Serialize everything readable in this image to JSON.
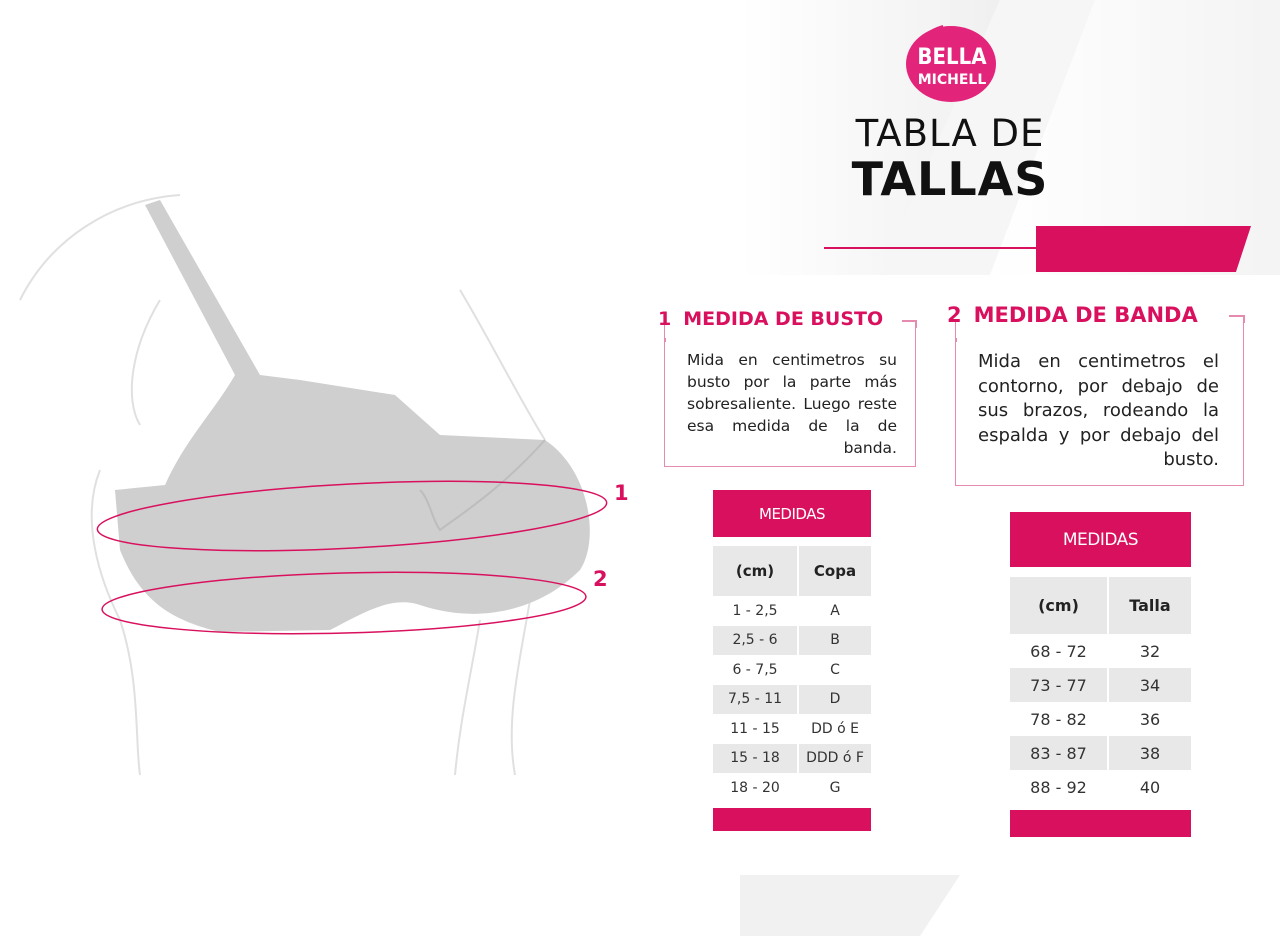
{
  "brand": {
    "logo_text": "BELLA MICHELL",
    "accent_color": "#d9105e"
  },
  "title": {
    "line1": "TABLA DE",
    "line2": "TALLAS"
  },
  "illustration": {
    "marker_1": "1",
    "marker_2": "2"
  },
  "bust": {
    "number": "1",
    "heading": "MEDIDA DE BUSTO",
    "text": "Mida en centimetros su busto por la parte más sobresaliente. Luego reste esa medida de la de banda.",
    "table": {
      "header": "MEDIDAS",
      "columns": [
        "(cm)",
        "Copa"
      ],
      "rows": [
        [
          "1 - 2,5",
          "A"
        ],
        [
          "2,5 - 6",
          "B"
        ],
        [
          "6 - 7,5",
          "C"
        ],
        [
          "7,5 - 11",
          "D"
        ],
        [
          "11 - 15",
          "DD ó E"
        ],
        [
          "15 - 18",
          "DDD ó F"
        ],
        [
          "18 - 20",
          "G"
        ]
      ]
    }
  },
  "band": {
    "number": "2",
    "heading": "MEDIDA DE BANDA",
    "text": "Mida en centimetros el contorno, por debajo de sus brazos, rodeando la espalda y por debajo del busto.",
    "table": {
      "header": "MEDIDAS",
      "columns": [
        "(cm)",
        "Talla"
      ],
      "rows": [
        [
          "68 - 72",
          "32"
        ],
        [
          "73 - 77",
          "34"
        ],
        [
          "78 - 82",
          "36"
        ],
        [
          "83 - 87",
          "38"
        ],
        [
          "88 - 92",
          "40"
        ]
      ]
    }
  }
}
